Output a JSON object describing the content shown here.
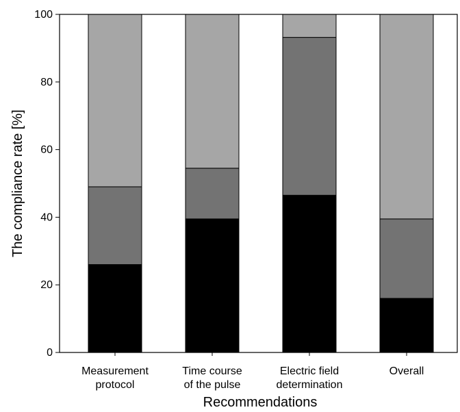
{
  "chart_data": {
    "type": "bar",
    "stacked": true,
    "xlabel": "Recommendations",
    "ylabel": "The compliance rate [%]",
    "ylim": [
      0,
      100
    ],
    "yticks": [
      0,
      20,
      40,
      60,
      80,
      100
    ],
    "grid": false,
    "categories": [
      [
        "Measurement",
        "protocol"
      ],
      [
        "Time course",
        "of the pulse"
      ],
      [
        "Electric field",
        "determination"
      ],
      [
        "Overall"
      ]
    ],
    "series": [
      {
        "values": [
          26,
          39.5,
          46.5,
          16
        ],
        "color": "#000000"
      },
      {
        "values": [
          23,
          15,
          46.7,
          23.5
        ],
        "color": "#737373"
      },
      {
        "values": [
          51,
          45.5,
          6.8,
          60.5
        ],
        "color": "#a6a6a6"
      }
    ]
  }
}
